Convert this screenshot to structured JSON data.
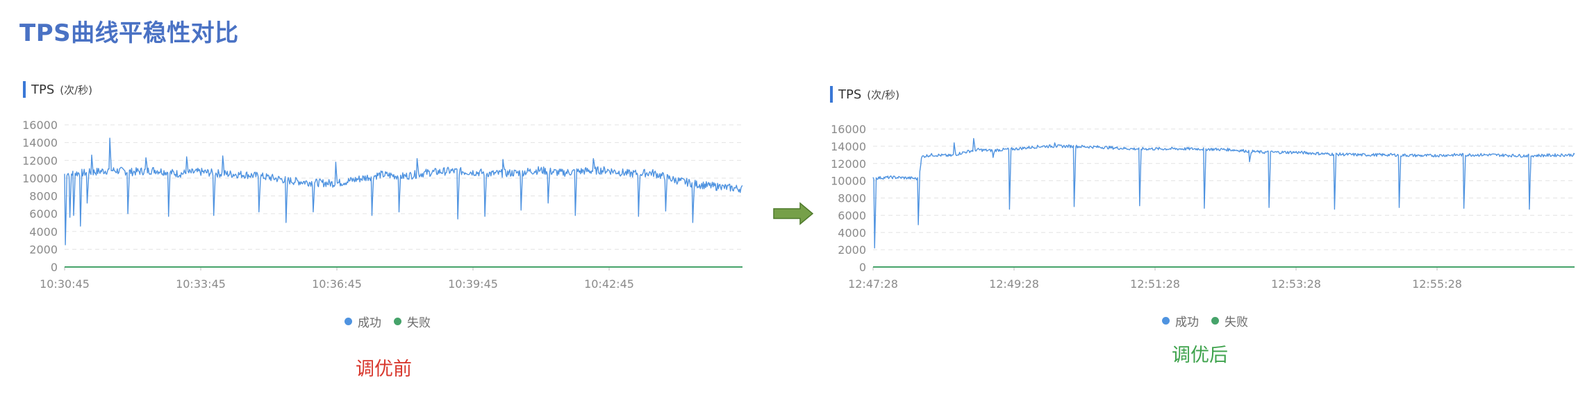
{
  "page_title": "TPS曲线平稳性对比",
  "colors": {
    "success": "#4f93e0",
    "failure": "#46a36a",
    "title": "#4a72c4",
    "arrow": "#76a049"
  },
  "chart_data": [
    {
      "type": "line",
      "title": "TPS",
      "unit": "(次/秒)",
      "caption": "调优前",
      "ylim": [
        0,
        16000
      ],
      "yticks": [
        "0",
        "2000",
        "4000",
        "6000",
        "8000",
        "10000",
        "12000",
        "14000",
        "16000"
      ],
      "xticks": [
        "10:30:45",
        "10:33:45",
        "10:36:45",
        "10:39:45",
        "10:42:45"
      ],
      "duration_min": 15,
      "legend": [
        {
          "name": "成功",
          "icon": "circle"
        },
        {
          "name": "失败",
          "icon": "circle"
        }
      ],
      "series": [
        {
          "name": "成功",
          "base": [
            [
              0,
              10500
            ],
            [
              0.5,
              10600
            ],
            [
              1,
              10900
            ],
            [
              1.5,
              10700
            ],
            [
              2,
              10900
            ],
            [
              2.5,
              10500
            ],
            [
              3,
              10700
            ],
            [
              3.5,
              10500
            ],
            [
              4,
              10400
            ],
            [
              4.5,
              10100
            ],
            [
              5,
              9700
            ],
            [
              5.5,
              9500
            ],
            [
              6,
              9400
            ],
            [
              6.5,
              9900
            ],
            [
              7,
              10400
            ],
            [
              7.5,
              10200
            ],
            [
              8,
              10600
            ],
            [
              8.5,
              10800
            ],
            [
              9,
              10700
            ],
            [
              9.5,
              10500
            ],
            [
              10,
              10600
            ],
            [
              10.5,
              10900
            ],
            [
              11,
              10600
            ],
            [
              11.5,
              10800
            ],
            [
              12,
              10900
            ],
            [
              12.5,
              10500
            ],
            [
              13,
              10600
            ],
            [
              13.5,
              9800
            ],
            [
              14,
              9300
            ],
            [
              14.5,
              9000
            ],
            [
              15,
              8800
            ]
          ],
          "spikes": [
            [
              0.02,
              2500
            ],
            [
              0.12,
              5600
            ],
            [
              0.2,
              5800
            ],
            [
              0.35,
              4600
            ],
            [
              0.5,
              7200
            ],
            [
              0.6,
              12600
            ],
            [
              1.0,
              14500
            ],
            [
              1.4,
              6000
            ],
            [
              1.8,
              12300
            ],
            [
              2.3,
              5700
            ],
            [
              2.7,
              12400
            ],
            [
              3.3,
              5800
            ],
            [
              3.5,
              12500
            ],
            [
              4.3,
              6200
            ],
            [
              4.9,
              5000
            ],
            [
              5.5,
              6200
            ],
            [
              6.0,
              11800
            ],
            [
              6.8,
              5800
            ],
            [
              7.4,
              6200
            ],
            [
              7.8,
              12200
            ],
            [
              8.7,
              5400
            ],
            [
              9.3,
              5700
            ],
            [
              9.7,
              12100
            ],
            [
              10.1,
              6400
            ],
            [
              10.7,
              7200
            ],
            [
              11.3,
              5800
            ],
            [
              11.7,
              12200
            ],
            [
              12.7,
              5700
            ],
            [
              13.3,
              6300
            ],
            [
              13.9,
              5000
            ],
            [
              14.5,
              9300
            ]
          ]
        },
        {
          "name": "失败",
          "values": [
            0
          ]
        }
      ]
    },
    {
      "type": "line",
      "title": "TPS",
      "unit": "(次/秒)",
      "caption": "调优后",
      "ylim": [
        0,
        16000
      ],
      "yticks": [
        "0",
        "2000",
        "4000",
        "6000",
        "8000",
        "10000",
        "12000",
        "14000",
        "16000"
      ],
      "xticks": [
        "12:47:28",
        "12:49:28",
        "12:51:28",
        "12:53:28",
        "12:55:28"
      ],
      "duration_min": 10.8,
      "legend": [
        {
          "name": "成功",
          "icon": "circle"
        },
        {
          "name": "失败",
          "icon": "circle"
        }
      ],
      "series": [
        {
          "name": "成功",
          "base": [
            [
              0,
              10300
            ],
            [
              0.3,
              10400
            ],
            [
              0.6,
              10300
            ],
            [
              0.7,
              10200
            ],
            [
              0.75,
              12800
            ],
            [
              0.9,
              13000
            ],
            [
              1.2,
              12900
            ],
            [
              1.4,
              13300
            ],
            [
              1.6,
              13600
            ],
            [
              1.8,
              13500
            ],
            [
              2.2,
              13700
            ],
            [
              2.6,
              14000
            ],
            [
              3.0,
              14000
            ],
            [
              3.5,
              13900
            ],
            [
              4.0,
              13700
            ],
            [
              4.5,
              13700
            ],
            [
              5.0,
              13700
            ],
            [
              5.5,
              13600
            ],
            [
              6.0,
              13300
            ],
            [
              6.5,
              13300
            ],
            [
              7.0,
              13100
            ],
            [
              7.5,
              13000
            ],
            [
              8.0,
              13000
            ],
            [
              8.5,
              12900
            ],
            [
              9.0,
              13000
            ],
            [
              9.5,
              13000
            ],
            [
              10.0,
              12900
            ],
            [
              10.8,
              13000
            ]
          ],
          "spikes": [
            [
              0.03,
              2200
            ],
            [
              0.7,
              4900
            ],
            [
              1.25,
              14400
            ],
            [
              1.55,
              14900
            ],
            [
              1.85,
              12700
            ],
            [
              2.1,
              6700
            ],
            [
              2.8,
              14400
            ],
            [
              3.1,
              7000
            ],
            [
              4.1,
              7100
            ],
            [
              5.1,
              6800
            ],
            [
              5.8,
              12200
            ],
            [
              6.1,
              6900
            ],
            [
              7.1,
              6700
            ],
            [
              8.1,
              6900
            ],
            [
              9.1,
              6800
            ],
            [
              10.1,
              6700
            ]
          ]
        },
        {
          "name": "失败",
          "values": [
            0
          ]
        }
      ]
    }
  ]
}
